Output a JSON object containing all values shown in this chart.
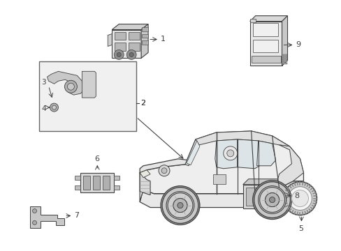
{
  "fig_width": 4.89,
  "fig_height": 3.6,
  "dpi": 100,
  "bg_color": "#ffffff",
  "lc": "#404040",
  "lc_light": "#888888",
  "fc_body": "#f5f5f5",
  "fc_glass": "#e8e8e8",
  "fc_dark": "#cccccc",
  "fc_wheel": "#aaaaaa",
  "fc_box": "#eeeeee"
}
